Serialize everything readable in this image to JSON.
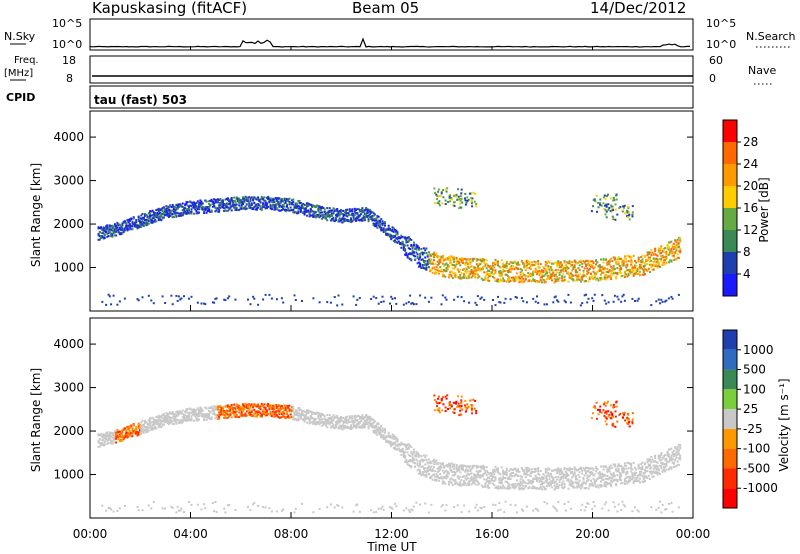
{
  "header": {
    "station": "Kapuskasing (fitACF)",
    "beam": "Beam 05",
    "date": "14/Dec/2012"
  },
  "top_strips": {
    "nsky_label": "N.Sky",
    "nsearch_label": "N.Search",
    "nsky_ticks": [
      "10^5",
      "10^0"
    ],
    "nsearch_ticks": [
      "10^5",
      "10^0"
    ],
    "freq_label_line1": "Freq.",
    "freq_label_line2": "[MHz]",
    "freq_ticks": [
      "18",
      "8"
    ],
    "nave_label": "Nave",
    "nave_ticks": [
      "60",
      "0"
    ],
    "cpid_label": "CPID",
    "cpid_value": "tau (fast) 503"
  },
  "chart_data": [
    {
      "type": "heatmap",
      "title": "",
      "xlabel": "",
      "ylabel": "Slant Range [km]",
      "ylim": [
        0,
        4600
      ],
      "y_ticks": [
        "4000",
        "3000",
        "2000",
        "1000"
      ],
      "colorbar_label": "Power [dB]",
      "colorbar_ticks": [
        "28",
        "24",
        "20",
        "16",
        "12",
        "8",
        "4"
      ],
      "colorbar_colors": [
        "#ff0000",
        "#ff6a00",
        "#ff9900",
        "#ffcc00",
        "#66aa44",
        "#3b8a55",
        "#1f3fb0",
        "#1a1aff"
      ],
      "scatter_bands": [
        {
          "desc": "main",
          "points": [
            [
              0.3,
              1800
            ],
            [
              1.0,
              1900
            ],
            [
              2.0,
              2100
            ],
            [
              3.0,
              2300
            ],
            [
              4.0,
              2400
            ],
            [
              5.0,
              2450
            ],
            [
              6.0,
              2500
            ],
            [
              7.0,
              2500
            ],
            [
              8.0,
              2450
            ],
            [
              9.0,
              2300
            ],
            [
              10.0,
              2200
            ],
            [
              11.0,
              2250
            ],
            [
              12.0,
              1800
            ],
            [
              13.0,
              1300
            ],
            [
              14.0,
              1050
            ],
            [
              16.0,
              950
            ],
            [
              18.0,
              920
            ],
            [
              20.0,
              950
            ],
            [
              22.0,
              1100
            ],
            [
              23.5,
              1500
            ]
          ]
        }
      ]
    },
    {
      "type": "heatmap",
      "title": "",
      "xlabel": "Time UT",
      "ylabel": "Slant Range [km]",
      "ylim": [
        0,
        4600
      ],
      "y_ticks": [
        "4000",
        "3000",
        "2000",
        "1000"
      ],
      "x_ticks": [
        "00:00",
        "04:00",
        "08:00",
        "12:00",
        "16:00",
        "20:00",
        "00:00"
      ],
      "colorbar_label": "Velocity [m s⁻¹]",
      "colorbar_ticks": [
        "1000",
        "500",
        "100",
        "25",
        "-25",
        "-100",
        "-500",
        "-1000"
      ],
      "colorbar_colors": [
        "#1f3fb0",
        "#2f6cc0",
        "#3b8a55",
        "#7ccf3c",
        "#c8c8c8",
        "#ff9900",
        "#ff6a00",
        "#ff2a00",
        "#ff0000"
      ]
    }
  ]
}
